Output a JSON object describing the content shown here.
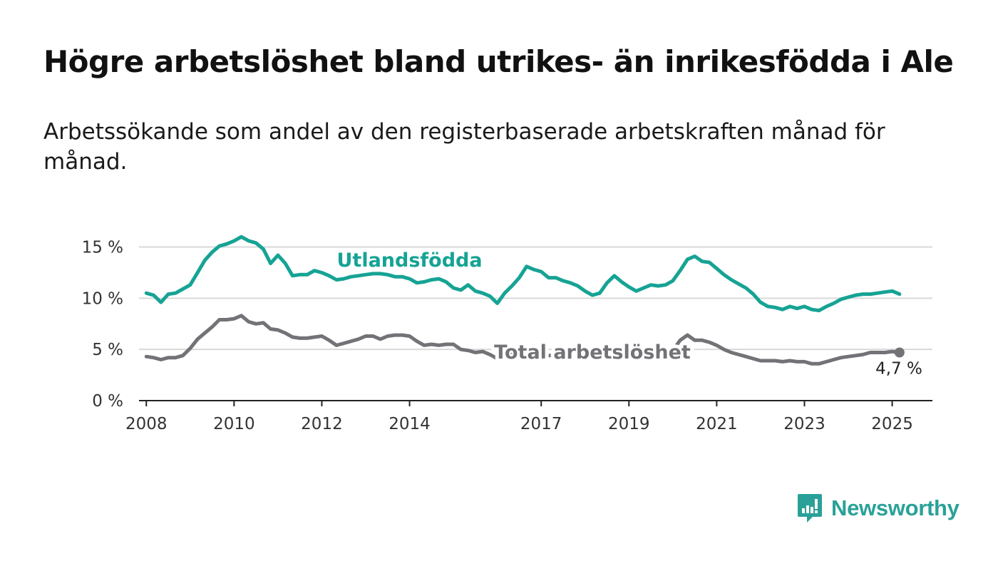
{
  "title": "Högre arbetslöshet bland utrikes- än inrikesfödda i Ale",
  "subtitle": "Arbetssökande som andel av den registerbaserade arbetskraften månad för månad.",
  "brand": {
    "name": "Newsworthy",
    "color": "#2aa198"
  },
  "chart_data": {
    "type": "line",
    "x_ticks": [
      "2008",
      "2010",
      "2012",
      "2014",
      "2017",
      "2019",
      "2021",
      "2023",
      "2025"
    ],
    "y_ticks": [
      "0 %",
      "5 %",
      "10 %",
      "15 %"
    ],
    "ylim": [
      0,
      16.5
    ],
    "xlim": [
      "2007-11",
      "2025-12"
    ],
    "grid": true,
    "end_label": "4,7 %",
    "series": [
      {
        "name": "Utlandsfödda",
        "color": "#16a394",
        "x": [
          "2008-01",
          "2008-03",
          "2008-05",
          "2008-07",
          "2008-09",
          "2008-11",
          "2009-01",
          "2009-03",
          "2009-05",
          "2009-07",
          "2009-09",
          "2009-11",
          "2010-01",
          "2010-03",
          "2010-05",
          "2010-07",
          "2010-09",
          "2010-11",
          "2011-01",
          "2011-03",
          "2011-05",
          "2011-07",
          "2011-09",
          "2011-11",
          "2012-01",
          "2012-03",
          "2012-05",
          "2012-07",
          "2012-09",
          "2012-11",
          "2013-01",
          "2013-03",
          "2013-05",
          "2013-07",
          "2013-09",
          "2013-11",
          "2014-01",
          "2014-03",
          "2014-05",
          "2014-07",
          "2014-09",
          "2014-11",
          "2015-01",
          "2015-03",
          "2015-05",
          "2015-07",
          "2015-09",
          "2015-11",
          "2016-01",
          "2016-03",
          "2016-05",
          "2016-07",
          "2016-09",
          "2016-11",
          "2017-01",
          "2017-03",
          "2017-05",
          "2017-07",
          "2017-09",
          "2017-11",
          "2018-01",
          "2018-03",
          "2018-05",
          "2018-07",
          "2018-09",
          "2018-11",
          "2019-01",
          "2019-03",
          "2019-05",
          "2019-07",
          "2019-09",
          "2019-11",
          "2020-01",
          "2020-03",
          "2020-05",
          "2020-07",
          "2020-09",
          "2020-11",
          "2021-01",
          "2021-03",
          "2021-05",
          "2021-07",
          "2021-09",
          "2021-11",
          "2022-01",
          "2022-03",
          "2022-05",
          "2022-07",
          "2022-09",
          "2022-11",
          "2023-01",
          "2023-03",
          "2023-05",
          "2023-07",
          "2023-09",
          "2023-11",
          "2024-01",
          "2024-03",
          "2024-05",
          "2024-07",
          "2024-09",
          "2024-11",
          "2025-01",
          "2025-03"
        ],
        "values": [
          10.5,
          10.3,
          9.6,
          10.4,
          10.5,
          10.9,
          11.3,
          12.5,
          13.7,
          14.5,
          15.1,
          15.3,
          15.6,
          16.0,
          15.6,
          15.4,
          14.8,
          13.4,
          14.2,
          13.4,
          12.2,
          12.3,
          12.3,
          12.7,
          12.5,
          12.2,
          11.8,
          11.9,
          12.1,
          12.2,
          12.3,
          12.4,
          12.4,
          12.3,
          12.1,
          12.1,
          11.9,
          11.5,
          11.6,
          11.8,
          11.9,
          11.6,
          11.0,
          10.8,
          11.3,
          10.7,
          10.5,
          10.2,
          9.5,
          10.5,
          11.2,
          12.0,
          13.1,
          12.8,
          12.6,
          12.0,
          12.0,
          11.7,
          11.5,
          11.2,
          10.7,
          10.3,
          10.5,
          11.5,
          12.2,
          11.6,
          11.1,
          10.7,
          11.0,
          11.3,
          11.2,
          11.3,
          11.7,
          12.7,
          13.8,
          14.1,
          13.6,
          13.5,
          12.9,
          12.3,
          11.8,
          11.4,
          11.0,
          10.4,
          9.6,
          9.2,
          9.1,
          8.9,
          9.2,
          9.0,
          9.2,
          8.9,
          8.8,
          9.2,
          9.5,
          9.9,
          10.1,
          10.3,
          10.4,
          10.4,
          10.5,
          10.6,
          10.7,
          10.4
        ],
        "label_x": "2014-01",
        "label_y": 13.1
      },
      {
        "name": "Total arbetslöshet",
        "color": "#727277",
        "x": [
          "2008-01",
          "2008-03",
          "2008-05",
          "2008-07",
          "2008-09",
          "2008-11",
          "2009-01",
          "2009-03",
          "2009-05",
          "2009-07",
          "2009-09",
          "2009-11",
          "2010-01",
          "2010-03",
          "2010-05",
          "2010-07",
          "2010-09",
          "2010-11",
          "2011-01",
          "2011-03",
          "2011-05",
          "2011-07",
          "2011-09",
          "2011-11",
          "2012-01",
          "2012-03",
          "2012-05",
          "2012-07",
          "2012-09",
          "2012-11",
          "2013-01",
          "2013-03",
          "2013-05",
          "2013-07",
          "2013-09",
          "2013-11",
          "2014-01",
          "2014-03",
          "2014-05",
          "2014-07",
          "2014-09",
          "2014-11",
          "2015-01",
          "2015-03",
          "2015-05",
          "2015-07",
          "2015-09",
          "2015-11",
          "2016-01",
          "2016-03",
          "2016-05",
          "2016-07",
          "2016-09",
          "2016-11",
          "2017-01",
          "2017-03",
          "2017-05",
          "2017-07",
          "2017-09",
          "2017-11",
          "2018-01",
          "2018-03",
          "2018-05",
          "2018-07",
          "2018-09",
          "2018-11",
          "2019-01",
          "2019-03",
          "2019-05",
          "2019-07",
          "2019-09",
          "2019-11",
          "2020-01",
          "2020-03",
          "2020-05",
          "2020-07",
          "2020-09",
          "2020-11",
          "2021-01",
          "2021-03",
          "2021-05",
          "2021-07",
          "2021-09",
          "2021-11",
          "2022-01",
          "2022-03",
          "2022-05",
          "2022-07",
          "2022-09",
          "2022-11",
          "2023-01",
          "2023-03",
          "2023-05",
          "2023-07",
          "2023-09",
          "2023-11",
          "2024-01",
          "2024-03",
          "2024-05",
          "2024-07",
          "2024-09",
          "2024-11",
          "2025-01",
          "2025-03"
        ],
        "values": [
          4.3,
          4.2,
          4.0,
          4.2,
          4.2,
          4.4,
          5.1,
          6.0,
          6.6,
          7.2,
          7.9,
          7.9,
          8.0,
          8.3,
          7.7,
          7.5,
          7.6,
          7.0,
          6.9,
          6.6,
          6.2,
          6.1,
          6.1,
          6.2,
          6.3,
          5.9,
          5.4,
          5.6,
          5.8,
          6.0,
          6.3,
          6.3,
          6.0,
          6.3,
          6.4,
          6.4,
          6.3,
          5.8,
          5.4,
          5.5,
          5.4,
          5.5,
          5.5,
          5.0,
          4.9,
          4.7,
          4.8,
          4.5,
          4.1,
          4.5,
          4.6,
          4.8,
          4.6,
          4.5,
          4.4,
          4.4,
          4.4,
          4.3,
          4.3,
          4.3,
          4.3,
          4.3,
          4.4,
          4.5,
          4.6,
          4.6,
          4.5,
          4.4,
          4.5,
          4.6,
          4.6,
          4.7,
          4.9,
          5.9,
          6.4,
          5.9,
          5.9,
          5.7,
          5.4,
          5.0,
          4.7,
          4.5,
          4.3,
          4.1,
          3.9,
          3.9,
          3.9,
          3.8,
          3.9,
          3.8,
          3.8,
          3.6,
          3.6,
          3.8,
          4.0,
          4.2,
          4.3,
          4.4,
          4.5,
          4.7,
          4.7,
          4.7,
          4.8,
          4.7
        ],
        "label_x": "2018-03",
        "label_y": 4.1
      }
    ]
  }
}
